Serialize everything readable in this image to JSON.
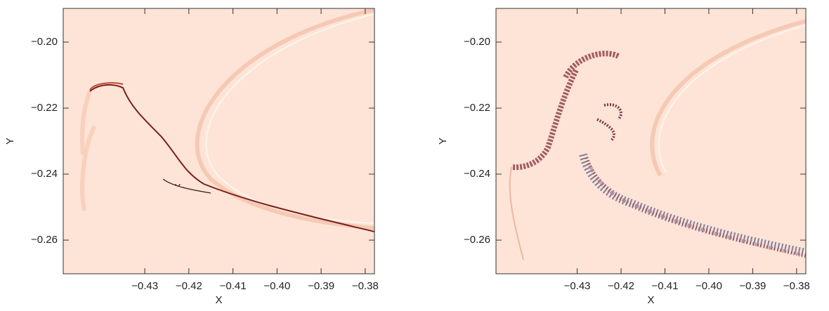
{
  "chart_data": [
    {
      "type": "image",
      "xlabel": "X",
      "ylabel": "Y",
      "background": "#fde4d6",
      "xlim": [
        -0.4485,
        -0.3779
      ],
      "ylim": [
        -0.2702,
        -0.1898
      ],
      "xticks": [
        {
          "value": -0.43,
          "label": "−0.43"
        },
        {
          "value": -0.42,
          "label": "−0.42"
        },
        {
          "value": -0.41,
          "label": "−0.41"
        },
        {
          "value": -0.4,
          "label": "−0.40"
        },
        {
          "value": -0.39,
          "label": "−0.39"
        },
        {
          "value": -0.38,
          "label": "−0.38"
        }
      ],
      "yticks": [
        {
          "value": -0.26,
          "label": "−0.26"
        },
        {
          "value": -0.24,
          "label": "−0.24"
        },
        {
          "value": -0.22,
          "label": "−0.22"
        },
        {
          "value": -0.2,
          "label": "−0.20"
        }
      ]
    },
    {
      "type": "image",
      "xlabel": "X",
      "ylabel": "Y",
      "background": "#fde4d6",
      "xlim": [
        -0.4485,
        -0.3779
      ],
      "ylim": [
        -0.2702,
        -0.1898
      ],
      "xticks": [
        {
          "value": -0.43,
          "label": "−0.43"
        },
        {
          "value": -0.42,
          "label": "−0.42"
        },
        {
          "value": -0.41,
          "label": "−0.41"
        },
        {
          "value": -0.4,
          "label": "−0.40"
        },
        {
          "value": -0.39,
          "label": "−0.39"
        },
        {
          "value": -0.38,
          "label": "−0.38"
        }
      ],
      "yticks": [
        {
          "value": -0.26,
          "label": "−0.26"
        },
        {
          "value": -0.24,
          "label": "−0.24"
        },
        {
          "value": -0.22,
          "label": "−0.22"
        },
        {
          "value": -0.2,
          "label": "−0.20"
        }
      ]
    }
  ]
}
